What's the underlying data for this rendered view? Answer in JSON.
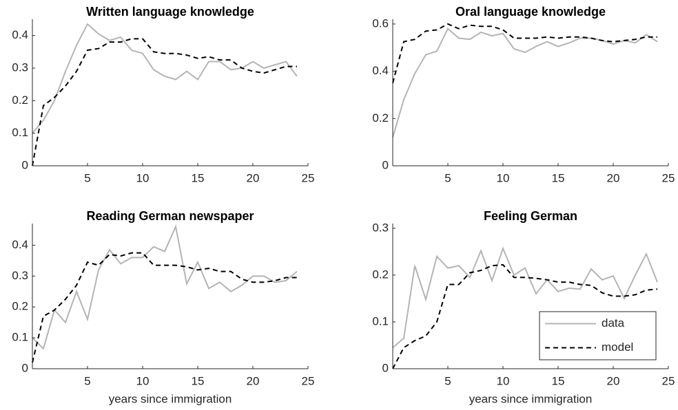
{
  "chart_data": [
    {
      "type": "line",
      "title": "Written language knowledge",
      "x": [
        0,
        1,
        2,
        3,
        4,
        5,
        6,
        7,
        8,
        9,
        10,
        11,
        12,
        13,
        14,
        15,
        16,
        17,
        18,
        19,
        20,
        21,
        22,
        23,
        24
      ],
      "series": [
        {
          "color": "#b4b4b4",
          "dash": "solid",
          "values": [
            0.1,
            0.14,
            0.2,
            0.29,
            0.37,
            0.435,
            0.405,
            0.385,
            0.395,
            0.355,
            0.345,
            0.295,
            0.275,
            0.265,
            0.29,
            0.265,
            0.32,
            0.32,
            0.295,
            0.3,
            0.32,
            0.3,
            0.31,
            0.32,
            0.275
          ]
        },
        {
          "color": "#000000",
          "dash": "dashed",
          "values": [
            0.0,
            0.185,
            0.21,
            0.245,
            0.29,
            0.355,
            0.36,
            0.38,
            0.38,
            0.39,
            0.39,
            0.35,
            0.345,
            0.345,
            0.34,
            0.33,
            0.335,
            0.325,
            0.325,
            0.3,
            0.29,
            0.285,
            0.295,
            0.305,
            0.305
          ]
        }
      ],
      "xlim": [
        0,
        25
      ],
      "xticks": [
        5,
        10,
        15,
        20,
        25
      ],
      "ylim": [
        0,
        0.45
      ],
      "yticks": [
        0,
        0.1,
        0.2,
        0.3,
        0.4
      ]
    },
    {
      "type": "line",
      "title": "Oral language knowledge",
      "x": [
        0,
        1,
        2,
        3,
        4,
        5,
        6,
        7,
        8,
        9,
        10,
        11,
        12,
        13,
        14,
        15,
        16,
        17,
        18,
        19,
        20,
        21,
        22,
        23,
        24
      ],
      "series": [
        {
          "color": "#b4b4b4",
          "dash": "solid",
          "values": [
            0.12,
            0.28,
            0.39,
            0.47,
            0.485,
            0.58,
            0.54,
            0.535,
            0.565,
            0.55,
            0.56,
            0.495,
            0.48,
            0.505,
            0.525,
            0.505,
            0.52,
            0.54,
            0.54,
            0.53,
            0.515,
            0.53,
            0.52,
            0.555,
            0.525
          ]
        },
        {
          "color": "#000000",
          "dash": "dashed",
          "values": [
            0.35,
            0.525,
            0.535,
            0.57,
            0.575,
            0.6,
            0.58,
            0.595,
            0.59,
            0.59,
            0.575,
            0.54,
            0.54,
            0.54,
            0.545,
            0.54,
            0.545,
            0.545,
            0.54,
            0.53,
            0.525,
            0.53,
            0.535,
            0.545,
            0.545
          ]
        }
      ],
      "xlim": [
        0,
        25
      ],
      "xticks": [
        5,
        10,
        15,
        20,
        25
      ],
      "ylim": [
        0,
        0.62
      ],
      "yticks": [
        0,
        0.2,
        0.4,
        0.6
      ]
    },
    {
      "type": "line",
      "title": "Reading German newspaper",
      "x_label": "years since immigration",
      "x": [
        0,
        1,
        2,
        3,
        4,
        5,
        6,
        7,
        8,
        9,
        10,
        11,
        12,
        13,
        14,
        15,
        16,
        17,
        18,
        19,
        20,
        21,
        22,
        23,
        24
      ],
      "series": [
        {
          "color": "#b4b4b4",
          "dash": "solid",
          "values": [
            0.1,
            0.065,
            0.19,
            0.15,
            0.25,
            0.16,
            0.32,
            0.385,
            0.34,
            0.36,
            0.36,
            0.395,
            0.38,
            0.46,
            0.275,
            0.345,
            0.26,
            0.28,
            0.25,
            0.27,
            0.3,
            0.3,
            0.28,
            0.285,
            0.315
          ]
        },
        {
          "color": "#000000",
          "dash": "dashed",
          "values": [
            0.02,
            0.17,
            0.19,
            0.225,
            0.27,
            0.345,
            0.335,
            0.37,
            0.365,
            0.375,
            0.375,
            0.335,
            0.335,
            0.335,
            0.33,
            0.32,
            0.325,
            0.315,
            0.315,
            0.29,
            0.28,
            0.28,
            0.285,
            0.295,
            0.295
          ]
        }
      ],
      "xlim": [
        0,
        25
      ],
      "xticks": [
        5,
        10,
        15,
        20,
        25
      ],
      "ylim": [
        0,
        0.47
      ],
      "yticks": [
        0,
        0.1,
        0.2,
        0.3,
        0.4
      ]
    },
    {
      "type": "line",
      "title": "Feeling German",
      "x_label": "years since immigration",
      "x": [
        0,
        1,
        2,
        3,
        4,
        5,
        6,
        7,
        8,
        9,
        10,
        11,
        12,
        13,
        14,
        15,
        16,
        17,
        18,
        19,
        20,
        21,
        22,
        23,
        24
      ],
      "series": [
        {
          "name": "data",
          "color": "#b4b4b4",
          "dash": "solid",
          "values": [
            0.045,
            0.065,
            0.22,
            0.148,
            0.24,
            0.215,
            0.22,
            0.195,
            0.252,
            0.188,
            0.257,
            0.2,
            0.215,
            0.16,
            0.19,
            0.165,
            0.172,
            0.17,
            0.213,
            0.19,
            0.198,
            0.15,
            0.2,
            0.245,
            0.185
          ]
        },
        {
          "name": "model",
          "color": "#000000",
          "dash": "dashed",
          "values": [
            0.0,
            0.045,
            0.06,
            0.07,
            0.1,
            0.18,
            0.18,
            0.205,
            0.21,
            0.22,
            0.222,
            0.195,
            0.195,
            0.193,
            0.19,
            0.185,
            0.185,
            0.18,
            0.178,
            0.162,
            0.155,
            0.155,
            0.158,
            0.168,
            0.17
          ]
        }
      ],
      "xlim": [
        0,
        25
      ],
      "xticks": [
        5,
        10,
        15,
        20,
        25
      ],
      "ylim": [
        0,
        0.31
      ],
      "yticks": [
        0,
        0.1,
        0.2,
        0.3
      ],
      "legend": "lower right"
    }
  ]
}
